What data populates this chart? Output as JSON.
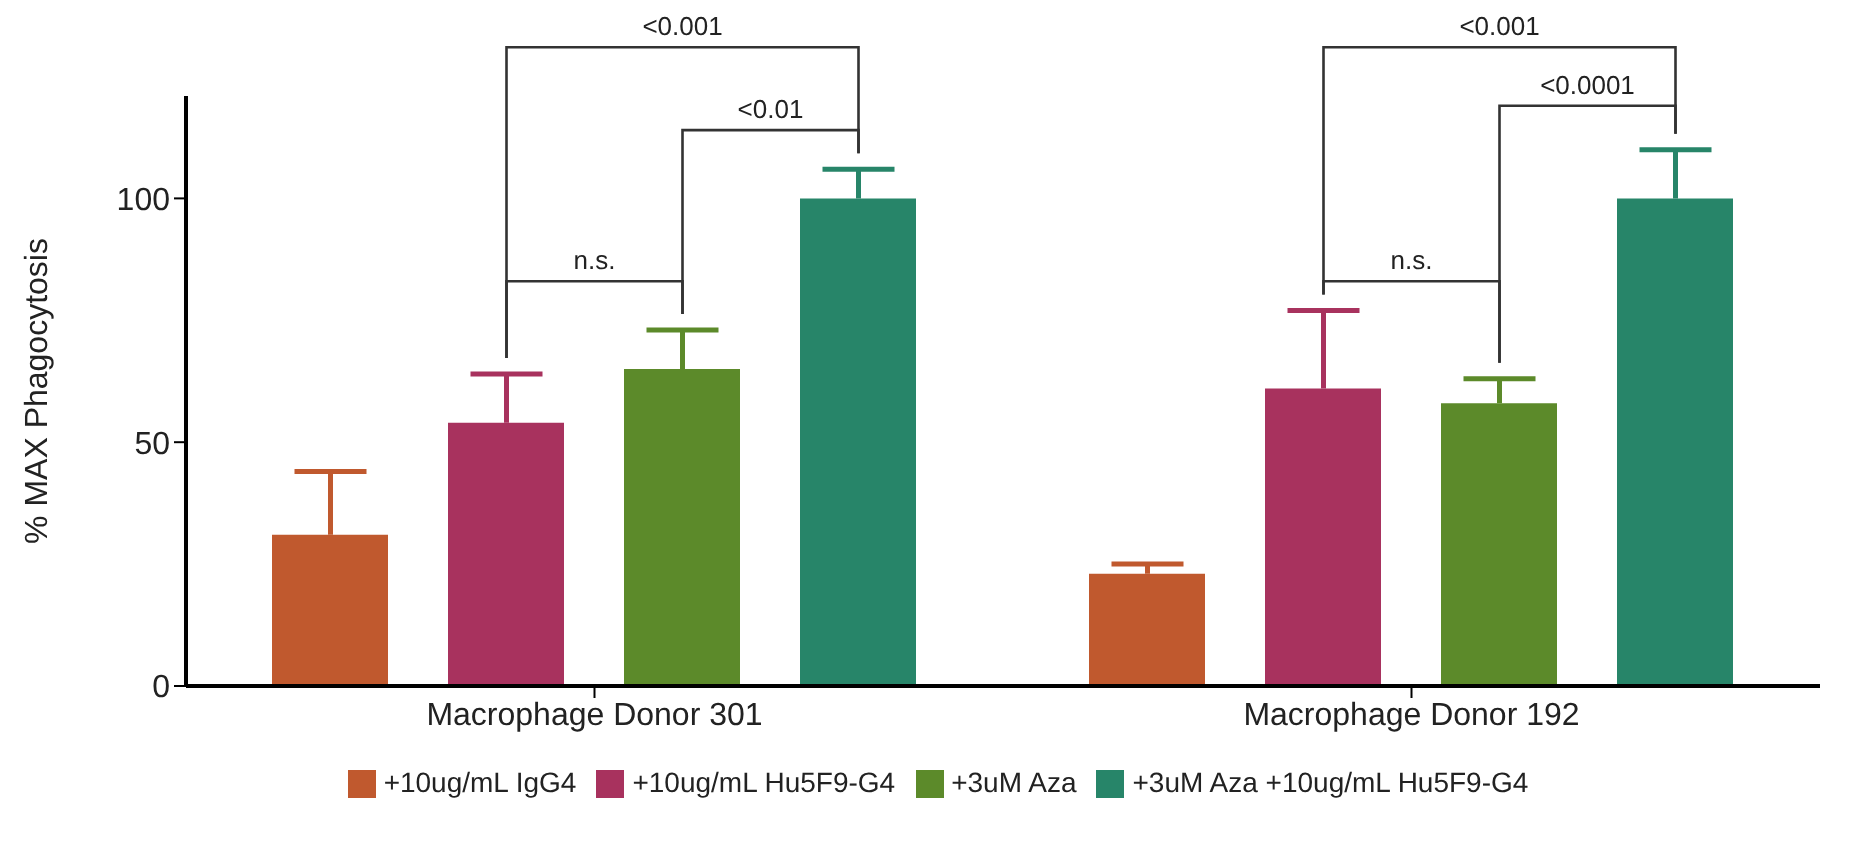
{
  "chart_data": {
    "type": "bar",
    "ylabel": "% MAX Phagocytosis",
    "categories": [
      "Macrophage Donor 301",
      "Macrophage Donor 192"
    ],
    "series": [
      {
        "name": "+10ug/mL IgG4",
        "color": "#c0592e",
        "values": [
          31,
          23
        ],
        "errors": [
          [
            31,
            44
          ],
          [
            23,
            25
          ]
        ]
      },
      {
        "name": "+10ug/mL Hu5F9-G4",
        "color": "#a8325e",
        "values": [
          54,
          61
        ],
        "errors": [
          [
            54,
            64
          ],
          [
            61,
            77
          ]
        ]
      },
      {
        "name": "+3uM Aza",
        "color": "#5c8a2a",
        "values": [
          65,
          58
        ],
        "errors": [
          [
            65,
            73
          ],
          [
            58,
            63
          ]
        ]
      },
      {
        "name": "+3uM Aza +10ug/mL Hu5F9-G4",
        "color": "#278569",
        "values": [
          100,
          100
        ],
        "errors": [
          [
            100,
            106
          ],
          [
            100,
            110
          ]
        ]
      }
    ],
    "ylim": [
      0,
      121
    ],
    "yticks": [
      0,
      50,
      100
    ],
    "grid": false,
    "legend": "bottom",
    "annotations": [
      "<0.001",
      "<0.01",
      "n.s.",
      "<0.001",
      "<0.0001",
      "n.s."
    ]
  }
}
